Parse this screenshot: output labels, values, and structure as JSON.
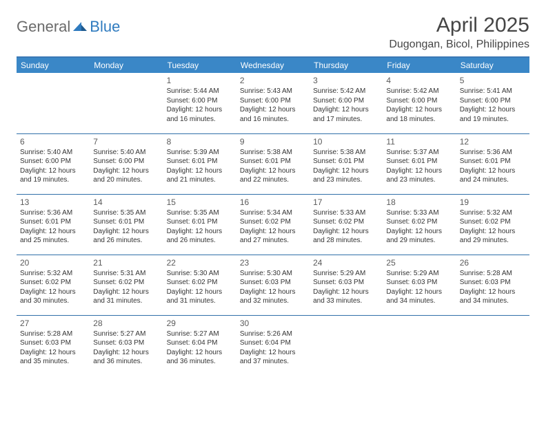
{
  "logo": {
    "general": "General",
    "blue": "Blue"
  },
  "title": "April 2025",
  "location": "Dugongan, Bicol, Philippines",
  "colors": {
    "header_bg": "#3a87c7",
    "border": "#2f6fa8",
    "title_text": "#454545",
    "logo_gray": "#6b6b6b",
    "logo_blue": "#2f7bbf",
    "cell_text": "#333333"
  },
  "weekdays": [
    "Sunday",
    "Monday",
    "Tuesday",
    "Wednesday",
    "Thursday",
    "Friday",
    "Saturday"
  ],
  "layout": {
    "first_weekday_index": 2,
    "days_in_month": 30
  },
  "days": {
    "1": {
      "sunrise": "5:44 AM",
      "sunset": "6:00 PM",
      "daylight": "12 hours and 16 minutes."
    },
    "2": {
      "sunrise": "5:43 AM",
      "sunset": "6:00 PM",
      "daylight": "12 hours and 16 minutes."
    },
    "3": {
      "sunrise": "5:42 AM",
      "sunset": "6:00 PM",
      "daylight": "12 hours and 17 minutes."
    },
    "4": {
      "sunrise": "5:42 AM",
      "sunset": "6:00 PM",
      "daylight": "12 hours and 18 minutes."
    },
    "5": {
      "sunrise": "5:41 AM",
      "sunset": "6:00 PM",
      "daylight": "12 hours and 19 minutes."
    },
    "6": {
      "sunrise": "5:40 AM",
      "sunset": "6:00 PM",
      "daylight": "12 hours and 19 minutes."
    },
    "7": {
      "sunrise": "5:40 AM",
      "sunset": "6:00 PM",
      "daylight": "12 hours and 20 minutes."
    },
    "8": {
      "sunrise": "5:39 AM",
      "sunset": "6:01 PM",
      "daylight": "12 hours and 21 minutes."
    },
    "9": {
      "sunrise": "5:38 AM",
      "sunset": "6:01 PM",
      "daylight": "12 hours and 22 minutes."
    },
    "10": {
      "sunrise": "5:38 AM",
      "sunset": "6:01 PM",
      "daylight": "12 hours and 23 minutes."
    },
    "11": {
      "sunrise": "5:37 AM",
      "sunset": "6:01 PM",
      "daylight": "12 hours and 23 minutes."
    },
    "12": {
      "sunrise": "5:36 AM",
      "sunset": "6:01 PM",
      "daylight": "12 hours and 24 minutes."
    },
    "13": {
      "sunrise": "5:36 AM",
      "sunset": "6:01 PM",
      "daylight": "12 hours and 25 minutes."
    },
    "14": {
      "sunrise": "5:35 AM",
      "sunset": "6:01 PM",
      "daylight": "12 hours and 26 minutes."
    },
    "15": {
      "sunrise": "5:35 AM",
      "sunset": "6:01 PM",
      "daylight": "12 hours and 26 minutes."
    },
    "16": {
      "sunrise": "5:34 AM",
      "sunset": "6:02 PM",
      "daylight": "12 hours and 27 minutes."
    },
    "17": {
      "sunrise": "5:33 AM",
      "sunset": "6:02 PM",
      "daylight": "12 hours and 28 minutes."
    },
    "18": {
      "sunrise": "5:33 AM",
      "sunset": "6:02 PM",
      "daylight": "12 hours and 29 minutes."
    },
    "19": {
      "sunrise": "5:32 AM",
      "sunset": "6:02 PM",
      "daylight": "12 hours and 29 minutes."
    },
    "20": {
      "sunrise": "5:32 AM",
      "sunset": "6:02 PM",
      "daylight": "12 hours and 30 minutes."
    },
    "21": {
      "sunrise": "5:31 AM",
      "sunset": "6:02 PM",
      "daylight": "12 hours and 31 minutes."
    },
    "22": {
      "sunrise": "5:30 AM",
      "sunset": "6:02 PM",
      "daylight": "12 hours and 31 minutes."
    },
    "23": {
      "sunrise": "5:30 AM",
      "sunset": "6:03 PM",
      "daylight": "12 hours and 32 minutes."
    },
    "24": {
      "sunrise": "5:29 AM",
      "sunset": "6:03 PM",
      "daylight": "12 hours and 33 minutes."
    },
    "25": {
      "sunrise": "5:29 AM",
      "sunset": "6:03 PM",
      "daylight": "12 hours and 34 minutes."
    },
    "26": {
      "sunrise": "5:28 AM",
      "sunset": "6:03 PM",
      "daylight": "12 hours and 34 minutes."
    },
    "27": {
      "sunrise": "5:28 AM",
      "sunset": "6:03 PM",
      "daylight": "12 hours and 35 minutes."
    },
    "28": {
      "sunrise": "5:27 AM",
      "sunset": "6:03 PM",
      "daylight": "12 hours and 36 minutes."
    },
    "29": {
      "sunrise": "5:27 AM",
      "sunset": "6:04 PM",
      "daylight": "12 hours and 36 minutes."
    },
    "30": {
      "sunrise": "5:26 AM",
      "sunset": "6:04 PM",
      "daylight": "12 hours and 37 minutes."
    }
  },
  "labels": {
    "sunrise": "Sunrise:",
    "sunset": "Sunset:",
    "daylight": "Daylight:"
  }
}
